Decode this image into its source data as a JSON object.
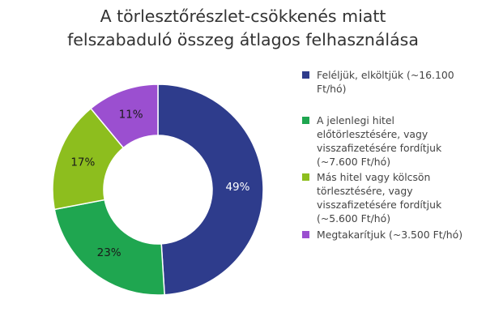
{
  "chart_data": {
    "type": "pie",
    "title": [
      "A törlesztőrészlet-csökkenés miatt",
      "felszabaduló összeg átlagos felhasználása"
    ],
    "donut": true,
    "legend_position": "right",
    "slices": [
      {
        "label": "Feléljük, elköltjük (~16.100 Ft/hó)",
        "value": 49,
        "display": "49%",
        "color": "#2E3C8C",
        "label_color": "#ffffff"
      },
      {
        "label": "A jelenlegi hitel előtörlesztésére, vagy visszafizetésére fordítjuk (~7.600 Ft/hó)",
        "value": 23,
        "display": "23%",
        "color": "#1FA650",
        "label_color": "#1a1a1a"
      },
      {
        "label": "Más hitel vagy kölcsön törlesztésére, vagy visszafizetésére fordítjuk (~5.600 Ft/hó)",
        "value": 17,
        "display": "17%",
        "color": "#8DBE1E",
        "label_color": "#1a1a1a"
      },
      {
        "label": "Megtakarítjuk (~3.500 Ft/hó)",
        "value": 11,
        "display": "11%",
        "color": "#9B4FD0",
        "label_color": "#1a1a1a"
      }
    ]
  }
}
